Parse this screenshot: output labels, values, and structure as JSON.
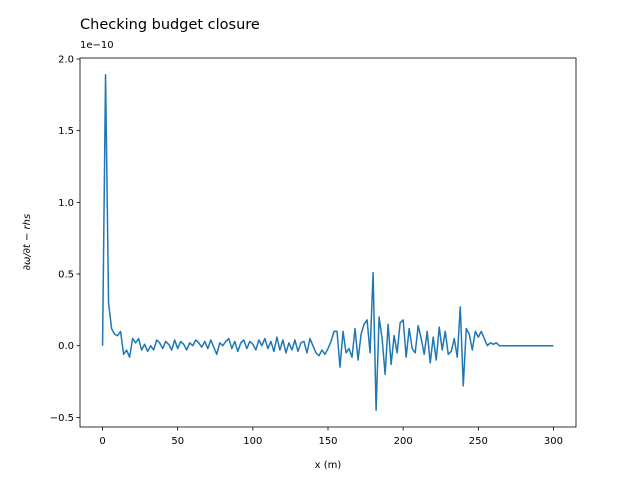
{
  "chart_data": {
    "type": "line",
    "title": "Checking budget closure",
    "offset_label": "1e−10",
    "x_label": "x (m)",
    "y_label": "∂ω/∂t − rhs",
    "x": [
      0,
      2,
      4,
      6,
      8,
      10,
      12,
      14,
      16,
      18,
      20,
      22,
      24,
      26,
      28,
      30,
      32,
      34,
      36,
      38,
      40,
      42,
      44,
      46,
      48,
      50,
      52,
      54,
      56,
      58,
      60,
      62,
      64,
      66,
      68,
      70,
      72,
      74,
      76,
      78,
      80,
      82,
      84,
      86,
      88,
      90,
      92,
      94,
      96,
      98,
      100,
      102,
      104,
      106,
      108,
      110,
      112,
      114,
      116,
      118,
      120,
      122,
      124,
      126,
      128,
      130,
      132,
      134,
      136,
      138,
      140,
      142,
      144,
      146,
      148,
      150,
      152,
      154,
      156,
      158,
      160,
      162,
      164,
      166,
      168,
      170,
      172,
      174,
      176,
      178,
      180,
      182,
      184,
      186,
      188,
      190,
      192,
      194,
      196,
      198,
      200,
      202,
      204,
      206,
      208,
      210,
      212,
      214,
      216,
      218,
      220,
      222,
      224,
      226,
      228,
      230,
      232,
      234,
      236,
      238,
      240,
      242,
      244,
      246,
      248,
      250,
      252,
      254,
      256,
      258,
      260,
      262,
      264,
      266,
      268,
      270,
      272,
      274,
      276,
      278,
      280,
      282,
      284,
      286,
      288,
      290,
      292,
      294,
      296,
      298,
      300
    ],
    "series": [
      {
        "color": "#1f77b4",
        "values": [
          0,
          1.89,
          0.3,
          0.12,
          0.08,
          0.07,
          0.1,
          -0.06,
          -0.03,
          -0.08,
          0.05,
          0.02,
          0.05,
          -0.03,
          0.01,
          -0.04,
          0.0,
          -0.03,
          0.04,
          0.02,
          -0.02,
          0.03,
          0.01,
          -0.03,
          0.04,
          -0.02,
          0.03,
          0.01,
          -0.03,
          0.02,
          0.0,
          0.04,
          0.02,
          -0.01,
          0.03,
          -0.02,
          0.04,
          -0.01,
          -0.06,
          0.02,
          0.0,
          0.03,
          0.05,
          -0.02,
          0.03,
          -0.04,
          0.02,
          0.04,
          -0.02,
          0.03,
          0.01,
          -0.03,
          0.04,
          0.0,
          0.05,
          -0.02,
          0.03,
          -0.04,
          0.06,
          -0.03,
          0.04,
          -0.05,
          0.02,
          -0.03,
          0.04,
          -0.04,
          0.02,
          0.03,
          -0.05,
          0.05,
          0.0,
          -0.05,
          -0.07,
          -0.03,
          -0.06,
          -0.02,
          0.03,
          0.1,
          0.1,
          -0.15,
          0.1,
          -0.05,
          -0.02,
          -0.08,
          0.12,
          -0.1,
          0.08,
          0.15,
          0.18,
          -0.05,
          0.51,
          -0.45,
          0.2,
          0.05,
          -0.2,
          0.15,
          -0.13,
          0.07,
          -0.05,
          0.16,
          0.18,
          -0.08,
          0.12,
          -0.02,
          -0.05,
          0.14,
          0.05,
          -0.06,
          0.1,
          -0.12,
          0.06,
          -0.1,
          0.13,
          -0.03,
          0.1,
          -0.06,
          -0.04,
          0.05,
          -0.08,
          0.27,
          -0.28,
          0.12,
          0.08,
          -0.03,
          0.1,
          0.06,
          0.1,
          0.05,
          0.0,
          0.02,
          0.01,
          0.02,
          0.0,
          0,
          0,
          0,
          0,
          0,
          0,
          0,
          0,
          0,
          0,
          0,
          0,
          0,
          0,
          0,
          0,
          0,
          0
        ]
      }
    ],
    "xlim": [
      -15,
      315
    ],
    "ylim": [
      -0.567,
      2.007
    ],
    "xticks": [
      0,
      50,
      100,
      150,
      200,
      250,
      300
    ],
    "yticks": [
      {
        "value": -0.5,
        "label": "−0.5"
      },
      {
        "value": 0,
        "label": "0.0"
      },
      {
        "value": 0.5,
        "label": "0.5"
      },
      {
        "value": 1,
        "label": "1.0"
      },
      {
        "value": 1.5,
        "label": "1.5"
      },
      {
        "value": 2,
        "label": "2.0"
      }
    ]
  }
}
